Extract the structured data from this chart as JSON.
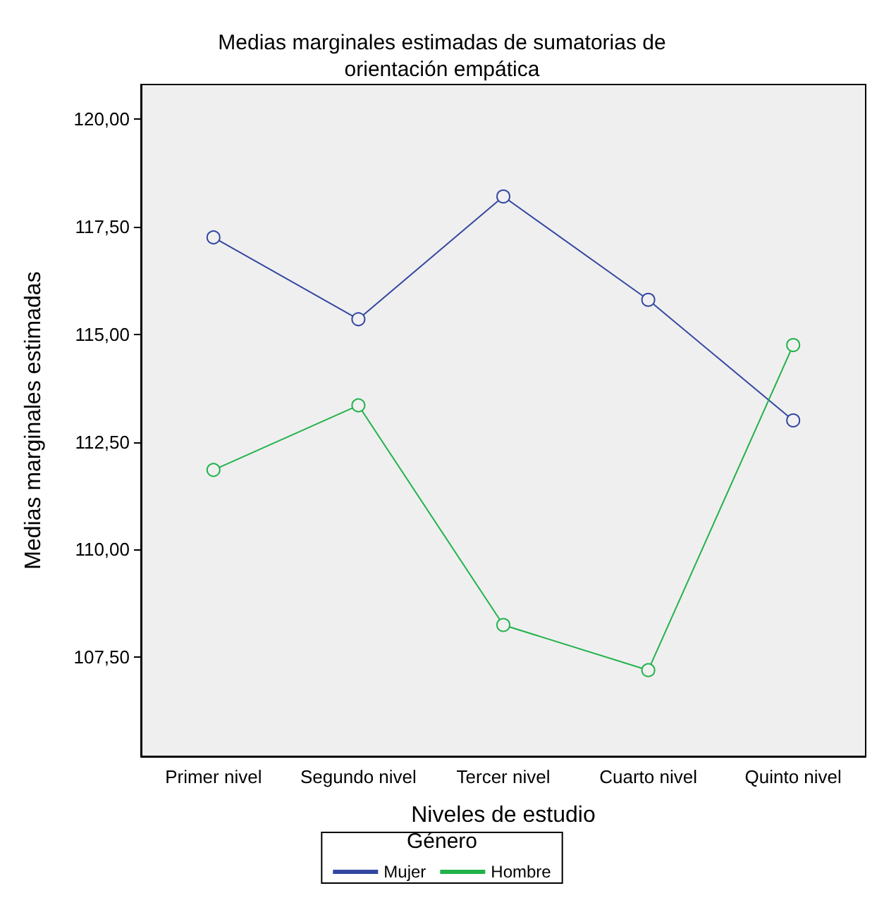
{
  "chart_data": {
    "type": "line",
    "title": "Medias marginales estimadas de sumatorias de\norientación empática",
    "xlabel": "Niveles de estudio",
    "ylabel": "Medias marginales estimadas",
    "legend_title": "Género",
    "categories": [
      "Primer nivel",
      "Segundo nivel",
      "Tercer nivel",
      "Cuarto nivel",
      "Quinto nivel"
    ],
    "series": [
      {
        "name": "Mujer",
        "color": "#3347a0",
        "values": [
          117.25,
          115.35,
          118.2,
          115.8,
          113.0
        ]
      },
      {
        "name": "Hombre",
        "color": "#22b24a",
        "values": [
          111.85,
          113.35,
          108.25,
          107.2,
          114.75
        ]
      }
    ],
    "ylim": [
      105.2,
      120.8
    ],
    "yticks": [
      {
        "value": 107.5,
        "label": "107,50"
      },
      {
        "value": 110,
        "label": "110,00"
      },
      {
        "value": 112.5,
        "label": "112,50"
      },
      {
        "value": 115,
        "label": "115,00"
      },
      {
        "value": 117.5,
        "label": "117,50"
      },
      {
        "value": 120,
        "label": "120,00"
      }
    ],
    "grid": false,
    "legend": "bottom",
    "marker": "circle",
    "line_style": "solid"
  }
}
